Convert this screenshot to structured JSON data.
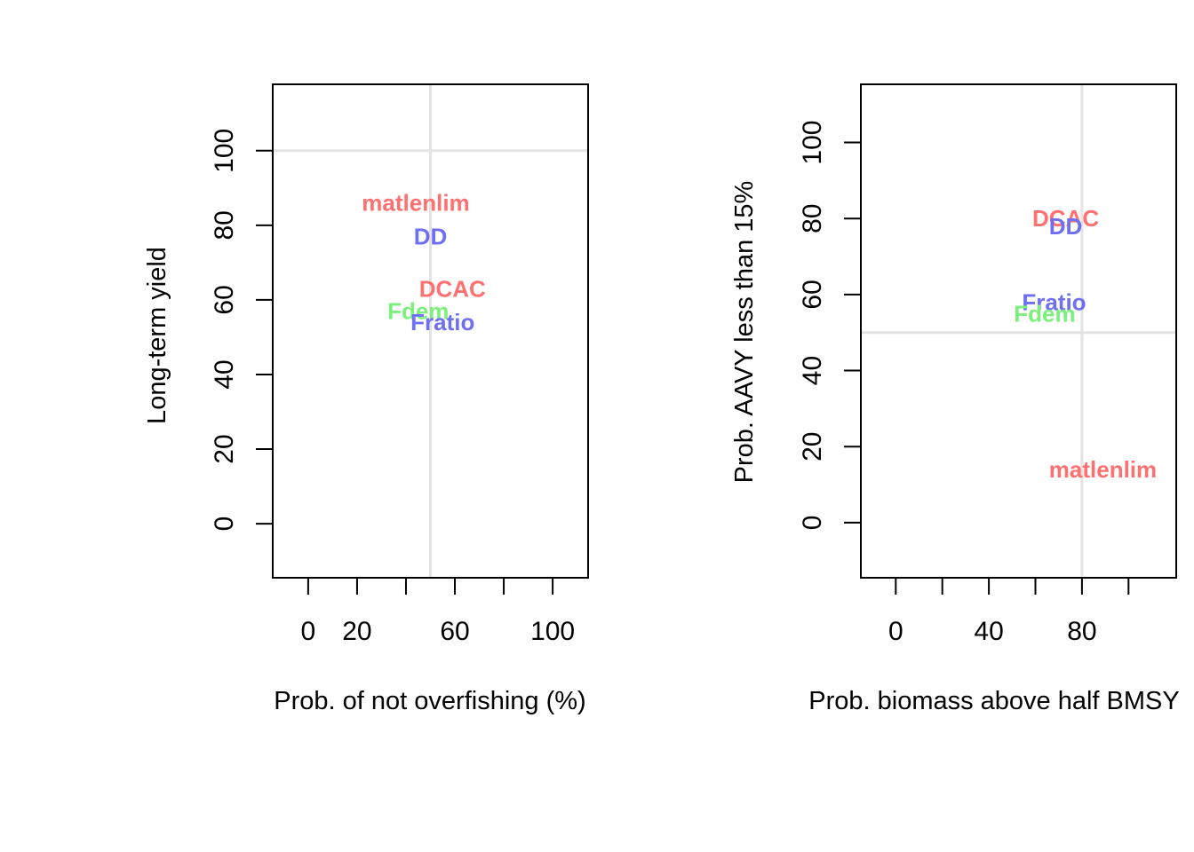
{
  "chart_data": [
    {
      "type": "scatter",
      "title": "",
      "xlabel": "Prob. of not overfishing (%)",
      "ylabel": "Long-term yield",
      "xlim": [
        -14.5,
        114.5
      ],
      "ylim": [
        -14.5,
        117.8
      ],
      "xticks": [
        0,
        20,
        40,
        60,
        80,
        100
      ],
      "xtick_labels": [
        "0",
        "20",
        "",
        "60",
        "",
        "100"
      ],
      "yticks": [
        0,
        20,
        40,
        60,
        80,
        100
      ],
      "ytick_labels": [
        "0",
        "20",
        "40",
        "60",
        "80",
        "100"
      ],
      "reference_lines": {
        "x": 50,
        "y": 100
      },
      "points": [
        {
          "label": "matlenlim",
          "x": 44,
          "y": 86,
          "color": "#ff7070"
        },
        {
          "label": "DD",
          "x": 50,
          "y": 77,
          "color": "#6f6ff2"
        },
        {
          "label": "DCAC",
          "x": 59,
          "y": 63,
          "color": "#ff7070"
        },
        {
          "label": "Fdem",
          "x": 45,
          "y": 57,
          "color": "#7bf07b"
        },
        {
          "label": "Fratio",
          "x": 55,
          "y": 54,
          "color": "#6f6ff2"
        }
      ],
      "grid": false
    },
    {
      "type": "scatter",
      "title": "",
      "xlabel": "Prob. biomass above half BMSY",
      "ylabel": "Prob. AAVY less than 15%",
      "xlim": [
        -15,
        120.5
      ],
      "ylim": [
        -14.5,
        115.3
      ],
      "xticks": [
        0,
        20,
        40,
        60,
        80,
        100
      ],
      "xtick_labels": [
        "0",
        "",
        "40",
        "",
        "80",
        ""
      ],
      "yticks": [
        0,
        20,
        40,
        60,
        80,
        100
      ],
      "ytick_labels": [
        "0",
        "20",
        "40",
        "60",
        "80",
        "100"
      ],
      "reference_lines": {
        "x": 80,
        "y": 50
      },
      "points": [
        {
          "label": "DCAC",
          "x": 73,
          "y": 80,
          "color": "#ff7070"
        },
        {
          "label": "DD",
          "x": 73,
          "y": 78,
          "color": "#6f6ff2"
        },
        {
          "label": "Fratio",
          "x": 68,
          "y": 58,
          "color": "#6f6ff2"
        },
        {
          "label": "Fdem",
          "x": 64,
          "y": 55,
          "color": "#7bf07b"
        },
        {
          "label": "matlenlim",
          "x": 89,
          "y": 14,
          "color": "#ff7070"
        }
      ],
      "grid": false
    }
  ]
}
